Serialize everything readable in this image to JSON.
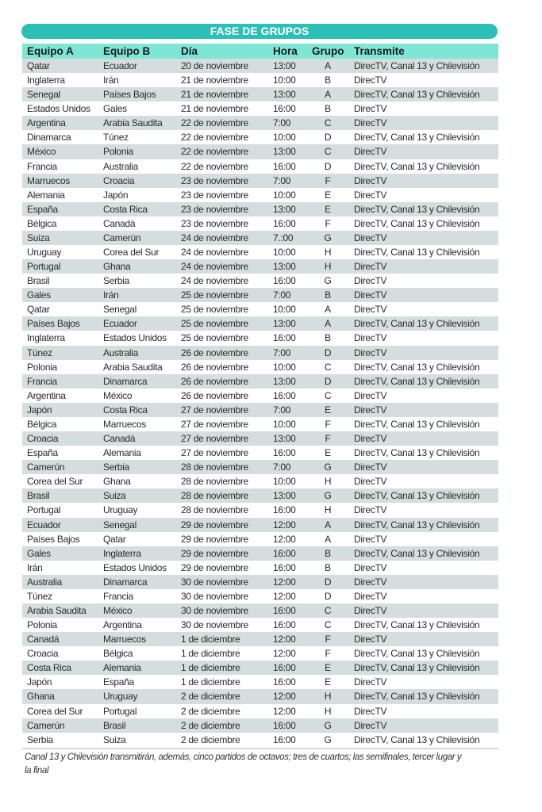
{
  "title": "FASE DE GRUPOS",
  "colors": {
    "title_bg": "#2cbfb5",
    "header_bg": "#7fe6d6",
    "row_shade": "#d5dddf"
  },
  "headers": {
    "a": "Equipo A",
    "b": "Equipo B",
    "dia": "Día",
    "hora": "Hora",
    "grupo": "Grupo",
    "transmite": "Transmite"
  },
  "rows": [
    [
      "Qatar",
      "Ecuador",
      "20 de noviembre",
      "13:00",
      "A",
      "DirecTV, Canal 13 y Chilevisión"
    ],
    [
      "Inglaterra",
      "Irán",
      "21 de noviembre",
      "10:00",
      "B",
      "DirecTV"
    ],
    [
      "Senegal",
      "Países Bajos",
      "21 de noviembre",
      "13:00",
      "A",
      "DirecTV, Canal 13 y Chilevisión"
    ],
    [
      "Estados Unidos",
      "Gales",
      "21 de noviembre",
      "16:00",
      "B",
      "DirecTV"
    ],
    [
      "Argentina",
      "Arabia Saudita",
      "22 de noviembre",
      "7:00",
      "C",
      "DirecTV"
    ],
    [
      "Dinamarca",
      "Túnez",
      "22 de noviembre",
      "10:00",
      "D",
      "DirecTV, Canal 13 y Chilevisión"
    ],
    [
      "México",
      "Polonia",
      "22 de noviembre",
      "13:00",
      "C",
      "DirecTV"
    ],
    [
      "Francia",
      "Australia",
      "22 de noviembre",
      "16:00",
      "D",
      "DirecTV, Canal 13 y Chilevisión"
    ],
    [
      "Marruecos",
      "Croacia",
      "23 de noviembre",
      "7:00",
      "F",
      "DirecTV"
    ],
    [
      "Alemania",
      "Japón",
      "23 de noviembre",
      "10:00",
      "E",
      "DirecTV"
    ],
    [
      "España",
      "Costa Rica",
      "23 de noviembre",
      "13:00",
      "E",
      "DirecTV, Canal 13 y Chilevisión"
    ],
    [
      "Bélgica",
      "Canadá",
      "23 de noviembre",
      "16:00",
      "F",
      "DirecTV, Canal 13 y Chilevisión"
    ],
    [
      "Suiza",
      "Camerún",
      "24 de noviembre",
      "7.:00",
      "G",
      "DirecTV"
    ],
    [
      "Uruguay",
      "Corea del Sur",
      "24 de noviembre",
      "10:00",
      "H",
      "DirecTV, Canal 13 y Chilevisión"
    ],
    [
      "Portugal",
      "Ghana",
      "24 de noviembre",
      "13:00",
      "H",
      "DirecTV"
    ],
    [
      "Brasil",
      "Serbia",
      "24 de noviembre",
      "16:00",
      "G",
      "DirecTV"
    ],
    [
      "Gales",
      "Irán",
      "25 de noviembre",
      "7:00",
      "B",
      "DirecTV"
    ],
    [
      "Qatar",
      "Senegal",
      "25 de noviembre",
      "10:00",
      "A",
      "DirecTV"
    ],
    [
      "Países Bajos",
      "Ecuador",
      "25 de noviembre",
      "13:00",
      "A",
      "DirecTV, Canal 13 y Chilevisión"
    ],
    [
      "Inglaterra",
      "Estados Unidos",
      "25 de noviembre",
      "16:00",
      "B",
      "DirecTV"
    ],
    [
      "Túnez",
      "Australia",
      "26 de noviembre",
      "7:00",
      "D",
      "DirecTV"
    ],
    [
      "Polonia",
      "Arabia Saudita",
      "26 de noviembre",
      "10:00",
      "C",
      "DirecTV, Canal 13 y Chilevisión"
    ],
    [
      "Francia",
      "Dinamarca",
      "26 de noviembre",
      "13:00",
      "D",
      "DirecTV, Canal 13 y Chilevisión"
    ],
    [
      "Argentina",
      "México",
      "26 de noviembre",
      "16:00",
      "C",
      "DirecTV"
    ],
    [
      "Japón",
      "Costa Rica",
      "27 de noviembre",
      "7:00",
      "E",
      "DirecTV"
    ],
    [
      "Bélgica",
      "Marruecos",
      "27 de noviembre",
      "10:00",
      "F",
      "DirecTV, Canal 13 y Chilevisión"
    ],
    [
      "Croacia",
      "Canadá",
      "27 de noviembre",
      "13:00",
      "F",
      "DirecTV"
    ],
    [
      "España",
      "Alemania",
      "27 de noviembre",
      "16:00",
      "E",
      "DirecTV, Canal 13 y Chilevisión"
    ],
    [
      "Camerún",
      "Serbia",
      "28 de noviembre",
      "7:00",
      "G",
      "DirecTV"
    ],
    [
      "Corea del Sur",
      "Ghana",
      "28 de noviembre",
      "10:00",
      "H",
      "DirecTV"
    ],
    [
      "Brasil",
      "Suiza",
      "28 de noviembre",
      "13:00",
      "G",
      "DirecTV, Canal 13 y Chilevisión"
    ],
    [
      "Portugal",
      "Uruguay",
      "28 de noviembre",
      "16:00",
      "H",
      "DirecTV"
    ],
    [
      "Ecuador",
      "Senegal",
      "29 de noviembre",
      "12:00",
      "A",
      "DirecTV, Canal 13 y Chilevisión"
    ],
    [
      "Países Bajos",
      "Qatar",
      "29 de noviembre",
      "12:00",
      "A",
      "DirecTV"
    ],
    [
      "Gales",
      "Inglaterra",
      "29 de noviembre",
      "16:00",
      "B",
      "DirecTV, Canal 13 y Chilevisión"
    ],
    [
      "Irán",
      "Estados Unidos",
      "29 de noviembre",
      "16:00",
      "B",
      "DirecTV"
    ],
    [
      "Australia",
      "Dinamarca",
      "30 de noviembre",
      "12:00",
      "D",
      "DirecTV"
    ],
    [
      "Túnez",
      "Francia",
      "30 de noviembre",
      "12:00",
      "D",
      "DirecTV"
    ],
    [
      "Arabia Saudita",
      "México",
      "30 de noviembre",
      "16:00",
      "C",
      "DirecTV"
    ],
    [
      "Polonia",
      "Argentina",
      "30 de noviembre",
      "16:00",
      "C",
      "DirecTV, Canal 13 y Chilevisión"
    ],
    [
      "Canadá",
      "Marruecos",
      "1 de diciembre",
      "12:00",
      "F",
      "DirecTV"
    ],
    [
      "Croacia",
      "Bélgica",
      "1 de diciembre",
      "12:00",
      "F",
      "DirecTV, Canal 13 y Chilevisión"
    ],
    [
      "Costa Rica",
      "Alemania",
      "1 de diciembre",
      "16:00",
      "E",
      "DirecTV, Canal 13 y Chilevisión"
    ],
    [
      "Japón",
      "España",
      "1 de diciembre",
      "16:00",
      "E",
      "DirecTV"
    ],
    [
      "Ghana",
      "Uruguay",
      "2 de diciembre",
      "12:00",
      "H",
      "DirecTV, Canal 13 y Chilevisión"
    ],
    [
      "Corea del Sur",
      "Portugal",
      "2 de diciembre",
      "12:00",
      "H",
      "DirecTV"
    ],
    [
      "Camerún",
      "Brasil",
      "2 de diciembre",
      "16:00",
      "G",
      "DirecTV"
    ],
    [
      "Serbia",
      "Suiza",
      "2 de diciembre",
      "16:00",
      "G",
      "DirecTV, Canal 13 y Chilevisión"
    ]
  ],
  "note": "Canal 13 y Chilevisión transmitirán, además, cinco partidos de octavos;  tres de cuartos; las semifinales, tercer lugar y la final"
}
